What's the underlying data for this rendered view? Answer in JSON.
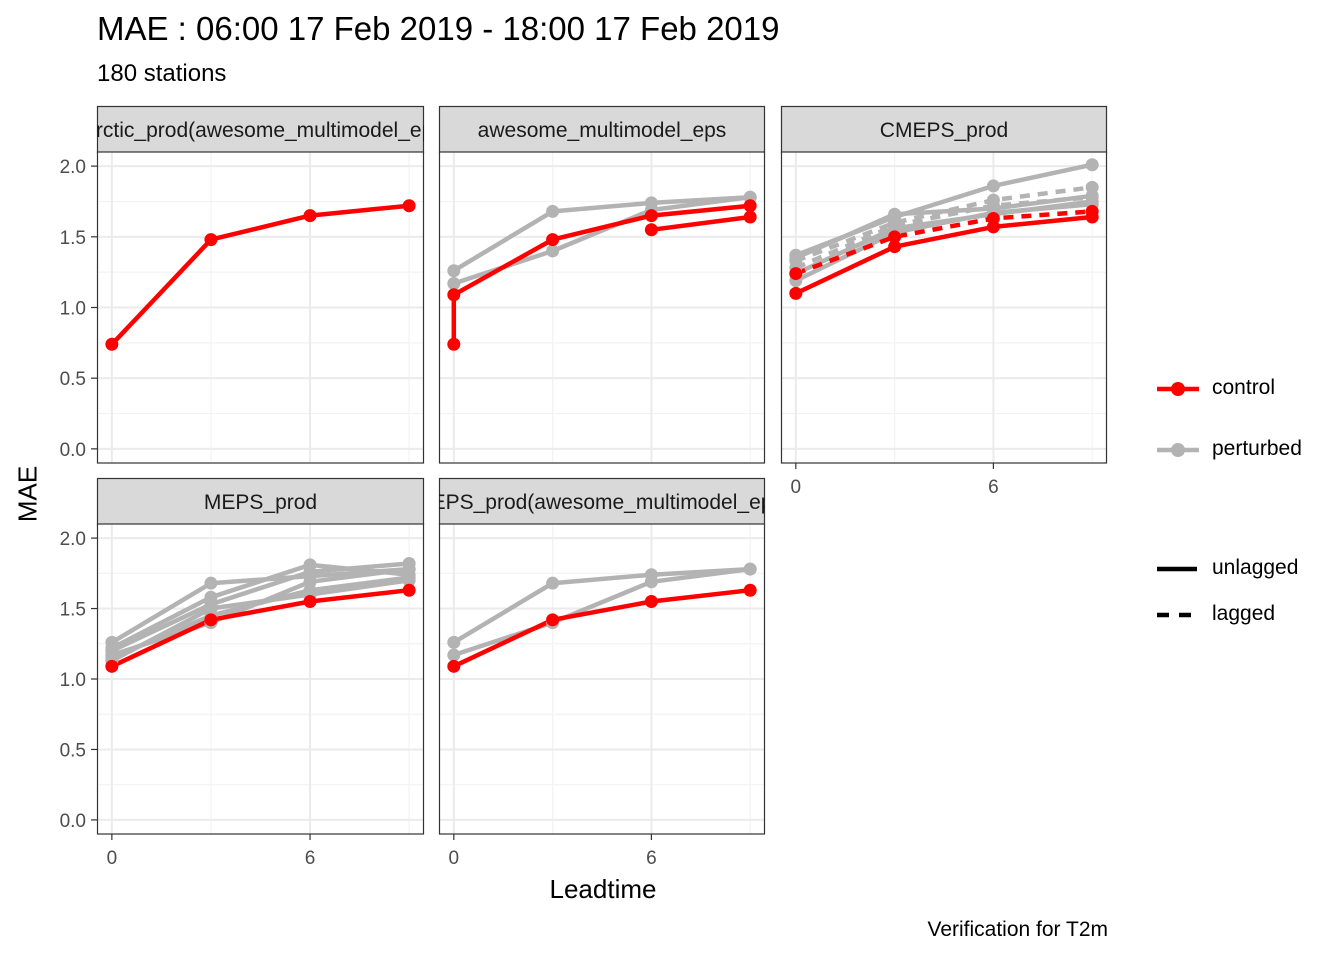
{
  "title": "MAE : 06:00 17 Feb 2019 - 18:00 17 Feb 2019",
  "subtitle": "180 stations",
  "caption": "Verification for T2m",
  "colors": {
    "control": "#ff0000",
    "perturbed": "#b3b3b3",
    "strip_fill": "#d9d9d9",
    "grid": "#ebebeb"
  },
  "legend": {
    "member_types": [
      "control",
      "perturbed"
    ],
    "lag_types": [
      "unlagged",
      "lagged"
    ]
  },
  "chart_data": {
    "type": "line",
    "xlabel": "Leadtime",
    "ylabel": "MAE",
    "ylim": [
      -0.1,
      2.1
    ],
    "xlim": [
      -0.45,
      9.45
    ],
    "yticks": [
      0.0,
      0.5,
      1.0,
      1.5,
      2.0
    ],
    "ytick_labels": [
      "0.0",
      "0.5",
      "1.0",
      "1.5",
      "2.0"
    ],
    "xticks": [
      0,
      6
    ],
    "xtick_labels": [
      "0",
      "6"
    ],
    "grid": true,
    "legend_position": "right",
    "panels": [
      {
        "strip": "_Arctic_prod(awesome_multimodel_eps)",
        "series": [
          {
            "member": "control",
            "lag": "unlagged",
            "x": [
              0,
              3,
              6,
              9
            ],
            "y": [
              0.74,
              1.48,
              1.65,
              1.72
            ]
          }
        ]
      },
      {
        "strip": "awesome_multimodel_eps",
        "series": [
          {
            "member": "perturbed",
            "lag": "unlagged",
            "x": [
              0,
              3,
              6,
              9
            ],
            "y": [
              1.26,
              1.68,
              1.74,
              1.78
            ]
          },
          {
            "member": "perturbed",
            "lag": "unlagged",
            "x": [
              0,
              3,
              6,
              9
            ],
            "y": [
              1.17,
              1.4,
              1.69,
              1.78
            ]
          },
          {
            "member": "control",
            "lag": "unlagged",
            "x": [
              0,
              0,
              3,
              6,
              9
            ],
            "y": [
              0.74,
              1.09,
              1.48,
              1.65,
              1.72
            ]
          },
          {
            "member": "control",
            "lag": "unlagged",
            "x": [
              6,
              9
            ],
            "y": [
              1.55,
              1.64
            ]
          }
        ]
      },
      {
        "strip": "CMEPS_prod",
        "series": [
          {
            "member": "perturbed",
            "lag": "unlagged",
            "x": [
              0,
              3,
              6,
              9
            ],
            "y": [
              1.37,
              1.64,
              1.86,
              2.01
            ]
          },
          {
            "member": "perturbed",
            "lag": "lagged",
            "x": [
              0,
              3,
              6,
              9
            ],
            "y": [
              1.33,
              1.6,
              1.76,
              1.85
            ]
          },
          {
            "member": "perturbed",
            "lag": "unlagged",
            "x": [
              0,
              3,
              6,
              9
            ],
            "y": [
              1.35,
              1.66,
              1.7,
              1.79
            ]
          },
          {
            "member": "perturbed",
            "lag": "lagged",
            "x": [
              0,
              3,
              6,
              9
            ],
            "y": [
              1.28,
              1.58,
              1.72,
              1.78
            ]
          },
          {
            "member": "perturbed",
            "lag": "unlagged",
            "x": [
              0,
              3,
              6,
              9
            ],
            "y": [
              1.24,
              1.56,
              1.66,
              1.75
            ]
          },
          {
            "member": "perturbed",
            "lag": "unlagged",
            "x": [
              0,
              3,
              6,
              9
            ],
            "y": [
              1.19,
              1.53,
              1.67,
              1.73
            ]
          },
          {
            "member": "control",
            "lag": "lagged",
            "x": [
              0,
              3,
              6,
              9
            ],
            "y": [
              1.24,
              1.5,
              1.63,
              1.68
            ]
          },
          {
            "member": "control",
            "lag": "unlagged",
            "x": [
              0,
              3,
              6,
              9
            ],
            "y": [
              1.1,
              1.43,
              1.57,
              1.64
            ]
          }
        ]
      },
      {
        "strip": "MEPS_prod",
        "series": [
          {
            "member": "perturbed",
            "lag": "unlagged",
            "x": [
              0,
              3,
              6,
              9
            ],
            "y": [
              1.26,
              1.68,
              1.73,
              1.78
            ]
          },
          {
            "member": "perturbed",
            "lag": "unlagged",
            "x": [
              0,
              3,
              6,
              9
            ],
            "y": [
              1.22,
              1.58,
              1.81,
              1.74
            ]
          },
          {
            "member": "perturbed",
            "lag": "unlagged",
            "x": [
              0,
              3,
              6,
              9
            ],
            "y": [
              1.2,
              1.53,
              1.76,
              1.82
            ]
          },
          {
            "member": "perturbed",
            "lag": "unlagged",
            "x": [
              0,
              3,
              6,
              9
            ],
            "y": [
              1.17,
              1.4,
              1.69,
              1.78
            ]
          },
          {
            "member": "perturbed",
            "lag": "unlagged",
            "x": [
              0,
              3,
              6,
              9
            ],
            "y": [
              1.15,
              1.45,
              1.63,
              1.72
            ]
          },
          {
            "member": "perturbed",
            "lag": "unlagged",
            "x": [
              0,
              3,
              6,
              9
            ],
            "y": [
              1.13,
              1.5,
              1.6,
              1.7
            ]
          },
          {
            "member": "control",
            "lag": "unlagged",
            "x": [
              0,
              3,
              6,
              9
            ],
            "y": [
              1.09,
              1.42,
              1.55,
              1.63
            ]
          }
        ]
      },
      {
        "strip": "MEPS_prod(awesome_multimodel_eps)",
        "series": [
          {
            "member": "perturbed",
            "lag": "unlagged",
            "x": [
              0,
              3,
              6,
              9
            ],
            "y": [
              1.26,
              1.68,
              1.74,
              1.78
            ]
          },
          {
            "member": "perturbed",
            "lag": "unlagged",
            "x": [
              0,
              3,
              6,
              9
            ],
            "y": [
              1.17,
              1.4,
              1.69,
              1.78
            ]
          },
          {
            "member": "control",
            "lag": "unlagged",
            "x": [
              0,
              3,
              6,
              9
            ],
            "y": [
              1.09,
              1.42,
              1.55,
              1.63
            ]
          }
        ]
      }
    ]
  }
}
